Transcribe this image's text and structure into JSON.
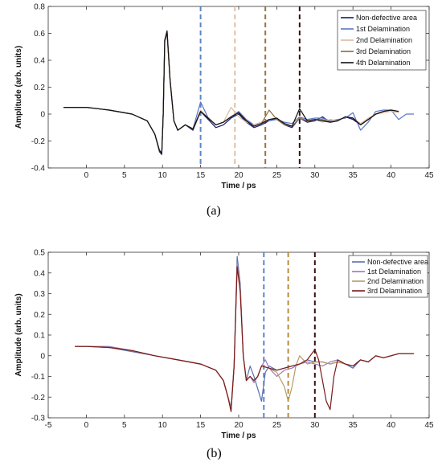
{
  "panels": [
    "(a)",
    "(b)"
  ],
  "colors": {
    "Non-defective area": "#1a1a6e",
    "1st Delamination": "#5a78c8",
    "2nd Delamination": "#e0b8a0",
    "3rd Delamination": "#8a6a3a",
    "4th Delamination": "#111111",
    "b_Non-defective area": "#5a6fb0",
    "b_1st Delamination": "#9a7ab8",
    "b_2nd Delamination": "#b89a60",
    "b_3rd Delamination": "#7a1a1a"
  },
  "chart_data": [
    {
      "type": "line",
      "xlabel": "Time / ps",
      "ylabel": "Amplitude (arb. units)",
      "xlim": [
        -5,
        45
      ],
      "ylim": [
        -0.4,
        0.8
      ],
      "xticks": [
        0,
        5,
        10,
        15,
        20,
        25,
        30,
        35,
        40,
        45
      ],
      "yticks": [
        -0.4,
        -0.2,
        0,
        0.2,
        0.4,
        0.6,
        0.8
      ],
      "legend": "top-right",
      "vlines": [
        {
          "x": 15,
          "color": "#5a86c8"
        },
        {
          "x": 19.5,
          "color": "#e0c0a8"
        },
        {
          "x": 23.5,
          "color": "#9a7440"
        },
        {
          "x": 28,
          "color": "#3a1010"
        }
      ],
      "series": [
        {
          "name": "Non-defective area",
          "color": "#1a1a6e",
          "x": [
            -3,
            0,
            3,
            6,
            8,
            9,
            9.6,
            9.9,
            10.1,
            10.3,
            10.6,
            11,
            11.5,
            12,
            13,
            14,
            15,
            16,
            17,
            18,
            19,
            20,
            21,
            22,
            23,
            24,
            25,
            26,
            27,
            28,
            29,
            30,
            31,
            32,
            33,
            34,
            35,
            36,
            37,
            38,
            39,
            40,
            41
          ],
          "y": [
            0.05,
            0.05,
            0.03,
            0.0,
            -0.05,
            -0.15,
            -0.28,
            -0.3,
            0.0,
            0.55,
            0.62,
            0.25,
            -0.05,
            -0.12,
            -0.08,
            -0.12,
            0.02,
            -0.04,
            -0.1,
            -0.08,
            -0.03,
            0.0,
            -0.06,
            -0.1,
            -0.08,
            -0.05,
            -0.03,
            -0.08,
            -0.1,
            -0.03,
            -0.06,
            -0.05,
            -0.02,
            -0.06,
            -0.05,
            -0.02,
            -0.04,
            -0.08,
            -0.04,
            0.0,
            0.02,
            0.03,
            0.02
          ]
        },
        {
          "name": "1st Delamination",
          "color": "#5a78c8",
          "x": [
            -3,
            0,
            3,
            6,
            8,
            9,
            9.6,
            9.9,
            10.1,
            10.3,
            10.6,
            11,
            11.5,
            12,
            13,
            14,
            15,
            16,
            17,
            18,
            19,
            20,
            21,
            22,
            23,
            24,
            25,
            26,
            27,
            28,
            29,
            30,
            31,
            32,
            33,
            34,
            35,
            36,
            37,
            38,
            39,
            40,
            41,
            42,
            43
          ],
          "y": [
            0.05,
            0.05,
            0.03,
            0.0,
            -0.05,
            -0.15,
            -0.27,
            -0.29,
            0.0,
            0.55,
            0.6,
            0.25,
            -0.05,
            -0.12,
            -0.08,
            -0.11,
            0.09,
            -0.03,
            -0.08,
            -0.06,
            -0.02,
            0.02,
            -0.04,
            -0.08,
            -0.06,
            -0.05,
            -0.04,
            -0.06,
            -0.07,
            -0.02,
            -0.04,
            -0.03,
            -0.03,
            -0.05,
            -0.04,
            -0.03,
            0.01,
            -0.12,
            -0.06,
            0.02,
            0.03,
            0.03,
            -0.04,
            0.0,
            0.0
          ]
        },
        {
          "name": "2nd Delamination",
          "color": "#e0b8a0",
          "x": [
            -3,
            0,
            3,
            6,
            8,
            9,
            9.6,
            9.9,
            10.1,
            10.3,
            10.6,
            11,
            11.5,
            12,
            13,
            14,
            15,
            16,
            17,
            18,
            19,
            20,
            21,
            22,
            23,
            24,
            25,
            26,
            27,
            28,
            29,
            30,
            31,
            32,
            33,
            34,
            35,
            36,
            37,
            38,
            39,
            40,
            41
          ],
          "y": [
            0.05,
            0.05,
            0.03,
            0.0,
            -0.05,
            -0.15,
            -0.27,
            -0.29,
            0.0,
            0.54,
            0.6,
            0.24,
            -0.05,
            -0.12,
            -0.08,
            -0.11,
            0.03,
            -0.03,
            -0.08,
            -0.06,
            0.05,
            -0.02,
            -0.06,
            -0.08,
            -0.06,
            -0.04,
            -0.03,
            -0.07,
            -0.09,
            -0.03,
            -0.05,
            -0.04,
            -0.06,
            -0.04,
            -0.05,
            -0.02,
            -0.03,
            -0.07,
            -0.03,
            0.0,
            0.01,
            0.02,
            0.01
          ]
        },
        {
          "name": "3rd Delamination",
          "color": "#8a6a3a",
          "x": [
            -3,
            0,
            3,
            6,
            8,
            9,
            9.6,
            9.9,
            10.1,
            10.3,
            10.6,
            11,
            11.5,
            12,
            13,
            14,
            15,
            16,
            17,
            18,
            19,
            20,
            21,
            22,
            23,
            24,
            25,
            26,
            27,
            28,
            29,
            30,
            31,
            32,
            33,
            34,
            35,
            36,
            37,
            38,
            39,
            40,
            41
          ],
          "y": [
            0.05,
            0.05,
            0.03,
            0.0,
            -0.05,
            -0.15,
            -0.27,
            -0.29,
            0.0,
            0.54,
            0.6,
            0.24,
            -0.05,
            -0.12,
            -0.08,
            -0.11,
            0.02,
            -0.03,
            -0.08,
            -0.06,
            -0.02,
            0.01,
            -0.05,
            -0.09,
            -0.07,
            0.03,
            -0.04,
            -0.08,
            -0.09,
            -0.03,
            -0.05,
            -0.04,
            -0.04,
            -0.06,
            -0.05,
            -0.02,
            -0.03,
            -0.08,
            -0.04,
            0.0,
            0.02,
            0.03,
            0.02
          ]
        },
        {
          "name": "4th Delamination",
          "color": "#111111",
          "x": [
            -3,
            0,
            3,
            6,
            8,
            9,
            9.6,
            9.9,
            10.1,
            10.3,
            10.6,
            11,
            11.5,
            12,
            13,
            14,
            15,
            16,
            17,
            18,
            19,
            20,
            21,
            22,
            23,
            24,
            25,
            26,
            27,
            28,
            29,
            30,
            31,
            32,
            33,
            34,
            35,
            36,
            37,
            38,
            39,
            40,
            41
          ],
          "y": [
            0.05,
            0.05,
            0.03,
            0.0,
            -0.05,
            -0.15,
            -0.27,
            -0.29,
            0.0,
            0.55,
            0.61,
            0.25,
            -0.05,
            -0.12,
            -0.08,
            -0.11,
            0.02,
            -0.03,
            -0.08,
            -0.06,
            -0.02,
            0.01,
            -0.05,
            -0.09,
            -0.07,
            -0.04,
            -0.03,
            -0.07,
            -0.09,
            0.04,
            -0.05,
            -0.04,
            -0.05,
            -0.06,
            -0.05,
            -0.02,
            -0.03,
            -0.08,
            -0.04,
            0.0,
            0.02,
            0.03,
            0.02
          ]
        }
      ]
    },
    {
      "type": "line",
      "xlabel": "Time / ps",
      "ylabel": "Amplitude (arb. units)",
      "xlim": [
        -5,
        45
      ],
      "ylim": [
        -0.3,
        0.5
      ],
      "xticks": [
        -5,
        0,
        5,
        10,
        15,
        20,
        25,
        30,
        35,
        40,
        45
      ],
      "yticks": [
        -0.3,
        -0.2,
        -0.1,
        0,
        0.1,
        0.2,
        0.3,
        0.4,
        0.5
      ],
      "legend": "top-right",
      "vlines": [
        {
          "x": 23.3,
          "color": "#5a86c8"
        },
        {
          "x": 26.5,
          "color": "#b88a40"
        },
        {
          "x": 30,
          "color": "#3a1010"
        }
      ],
      "series": [
        {
          "name": "Non-defective area",
          "color": "#5a6fb0",
          "x": [
            -1.5,
            0,
            3,
            6,
            9,
            12,
            15,
            17,
            18,
            18.6,
            19.0,
            19.4,
            19.8,
            20.2,
            20.6,
            21,
            21.5,
            22,
            22.5,
            23,
            23.5,
            24,
            25,
            26,
            27,
            28,
            29,
            30,
            31,
            32,
            33,
            34,
            35,
            36,
            37,
            38,
            39,
            40,
            41,
            42,
            43
          ],
          "y": [
            0.045,
            0.045,
            0.04,
            0.02,
            0.0,
            -0.02,
            -0.04,
            -0.07,
            -0.12,
            -0.2,
            -0.25,
            -0.05,
            0.48,
            0.35,
            0.0,
            -0.12,
            -0.05,
            -0.1,
            -0.16,
            -0.22,
            -0.08,
            -0.05,
            -0.07,
            -0.06,
            -0.05,
            -0.04,
            -0.02,
            -0.03,
            -0.03,
            -0.04,
            -0.03,
            -0.04,
            -0.06,
            -0.02,
            -0.03,
            0.0,
            -0.01,
            0.0,
            0.01,
            0.01,
            0.01
          ]
        },
        {
          "name": "1st Delamination",
          "color": "#9a7ab8",
          "x": [
            -1.5,
            0,
            3,
            6,
            9,
            12,
            15,
            17,
            18,
            18.6,
            19.0,
            19.4,
            19.8,
            20.2,
            20.6,
            21,
            21.5,
            22,
            22.5,
            23,
            23.5,
            24,
            25,
            26,
            27,
            28,
            29,
            30,
            31,
            32,
            33,
            34,
            35,
            36,
            37,
            38,
            39,
            40,
            41,
            42,
            43
          ],
          "y": [
            0.045,
            0.045,
            0.045,
            0.025,
            0.0,
            -0.02,
            -0.04,
            -0.07,
            -0.12,
            -0.2,
            -0.26,
            -0.05,
            0.45,
            0.33,
            0.0,
            -0.12,
            -0.1,
            -0.13,
            -0.1,
            -0.05,
            -0.02,
            -0.06,
            -0.1,
            -0.07,
            -0.06,
            -0.04,
            -0.03,
            -0.04,
            -0.05,
            -0.03,
            -0.02,
            -0.04,
            -0.05,
            -0.02,
            -0.03,
            0.0,
            -0.01,
            0.0,
            0.01,
            0.01,
            0.01
          ]
        },
        {
          "name": "2nd Delamination",
          "color": "#b89a60",
          "x": [
            -1.5,
            0,
            3,
            6,
            9,
            12,
            15,
            17,
            18,
            18.6,
            19.0,
            19.4,
            19.8,
            20.2,
            20.6,
            21,
            21.5,
            22,
            22.5,
            23,
            24,
            25,
            26,
            26.5,
            27,
            27.5,
            28,
            29,
            30,
            31,
            32,
            33,
            34,
            35,
            36,
            37,
            38,
            39,
            40,
            41,
            42,
            43
          ],
          "y": [
            0.045,
            0.045,
            0.04,
            0.025,
            0.0,
            -0.02,
            -0.04,
            -0.07,
            -0.12,
            -0.2,
            -0.26,
            -0.05,
            0.44,
            0.32,
            0.0,
            -0.12,
            -0.1,
            -0.12,
            -0.1,
            -0.05,
            -0.06,
            -0.08,
            -0.15,
            -0.22,
            -0.15,
            -0.05,
            0.0,
            -0.04,
            -0.03,
            -0.03,
            -0.04,
            -0.03,
            -0.04,
            -0.05,
            -0.02,
            -0.03,
            0.0,
            -0.01,
            0.0,
            0.01,
            0.01,
            0.01
          ]
        },
        {
          "name": "3rd Delamination",
          "color": "#7a1a1a",
          "x": [
            -1.5,
            0,
            3,
            6,
            9,
            12,
            15,
            17,
            18,
            18.6,
            19.0,
            19.4,
            19.8,
            20.2,
            20.6,
            21,
            21.5,
            22,
            22.5,
            23,
            24,
            25,
            26,
            27,
            28,
            29,
            30,
            30.5,
            31,
            31.5,
            32,
            32.5,
            33,
            34,
            35,
            36,
            37,
            38,
            39,
            40,
            41,
            42,
            43
          ],
          "y": [
            0.045,
            0.045,
            0.04,
            0.025,
            0.0,
            -0.02,
            -0.04,
            -0.07,
            -0.12,
            -0.2,
            -0.27,
            -0.05,
            0.43,
            0.31,
            0.0,
            -0.12,
            -0.1,
            -0.12,
            -0.1,
            -0.05,
            -0.06,
            -0.07,
            -0.06,
            -0.05,
            -0.04,
            -0.02,
            0.03,
            -0.02,
            -0.12,
            -0.22,
            -0.26,
            -0.1,
            -0.02,
            -0.04,
            -0.05,
            -0.02,
            -0.03,
            0.0,
            -0.01,
            0.0,
            0.01,
            0.01,
            0.01
          ]
        }
      ]
    }
  ]
}
